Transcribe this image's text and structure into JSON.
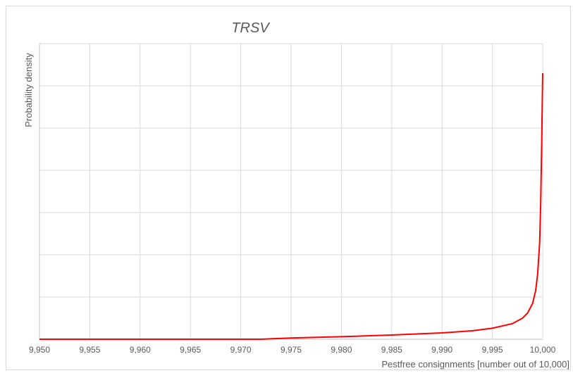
{
  "chart_data": {
    "type": "line",
    "title": "TRSV",
    "xlabel": "Pestfree consignments [number out of 10,000]",
    "ylabel": "Probability density",
    "xlim": [
      9950,
      10000
    ],
    "ylim": [
      0,
      7
    ],
    "x_ticks": [
      9950,
      9955,
      9960,
      9965,
      9970,
      9975,
      9980,
      9985,
      9990,
      9995,
      10000
    ],
    "x_tick_labels": [
      "9,950",
      "9,955",
      "9,960",
      "9,965",
      "9,970",
      "9,975",
      "9,980",
      "9,985",
      "9,990",
      "9,995",
      "10,000"
    ],
    "y_gridlines": [
      0,
      1,
      2,
      3,
      4,
      5,
      6,
      7
    ],
    "y_tick_labels_shown": false,
    "grid": true,
    "legend": "none",
    "series": [
      {
        "color": "#ff0000",
        "x": [
          9950,
          9972,
          9975,
          9980,
          9985,
          9990,
          9993,
          9995,
          9997,
          9998,
          9998.5,
          9999,
          9999.3,
          9999.5,
          9999.7,
          9999.8,
          9999.9,
          9999.95,
          10000
        ],
        "y": [
          0,
          0,
          0.03,
          0.06,
          0.1,
          0.15,
          0.2,
          0.26,
          0.37,
          0.5,
          0.62,
          0.85,
          1.15,
          1.55,
          2.3,
          3.2,
          4.6,
          5.5,
          6.3
        ]
      }
    ]
  }
}
